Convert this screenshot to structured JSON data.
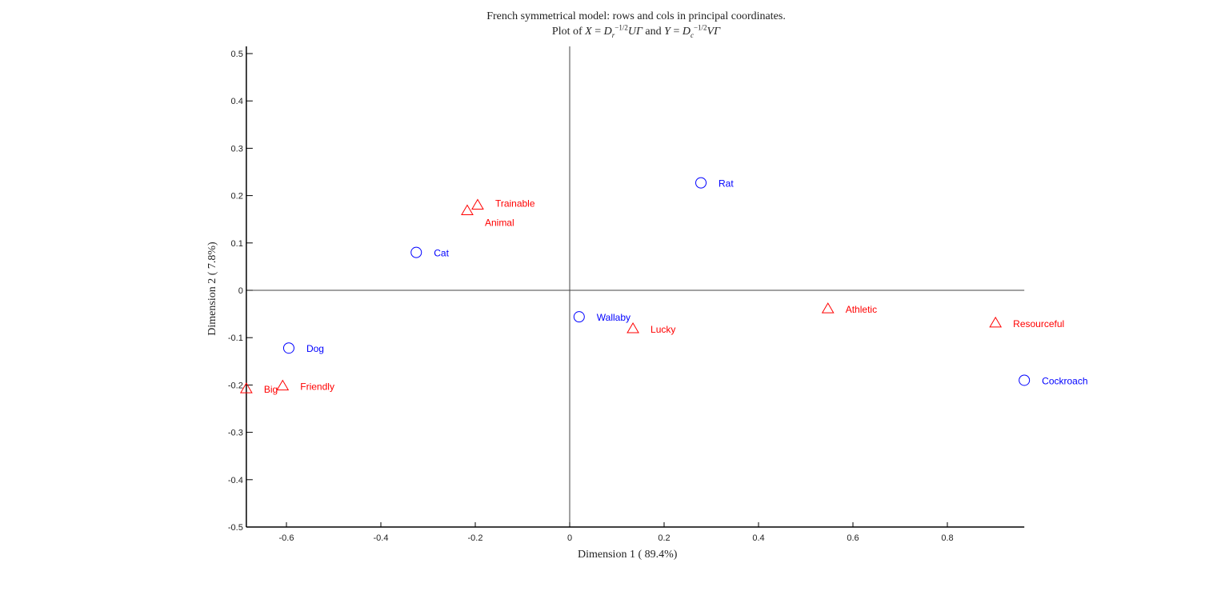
{
  "chart_data": {
    "type": "scatter",
    "title": {
      "line1": "French symmetrical model: rows and cols in principal coordinates.",
      "line2": {
        "prefix": "Plot of ",
        "x": "X",
        "eq": " = ",
        "d": "D",
        "sub_r": "r",
        "sup": "−1/2",
        "ug": "UΓ",
        "and": " and ",
        "y": "Y",
        "sub_c": "c",
        "vg": "VΓ"
      }
    },
    "xlabel": "Dimension  1 ( 89.4%)",
    "ylabel": "Dimension  2 ( 7.8%)",
    "xlim": [
      -0.685,
      0.963
    ],
    "ylim": [
      -0.5,
      0.5
    ],
    "xticks": [
      "-0.6",
      "-0.4",
      "-0.2",
      "0",
      "0.2",
      "0.4",
      "0.6",
      "0.8"
    ],
    "yticks": [
      "0.5",
      "0.4",
      "0.3",
      "0.2",
      "0.1",
      "0",
      "-0.1",
      "-0.2",
      "-0.3",
      "-0.4",
      "-0.5"
    ],
    "grid": false,
    "series": [
      {
        "marker": "circle",
        "color": "#0000ff",
        "points": [
          {
            "label": "Rat",
            "x": 0.278,
            "y": 0.227
          },
          {
            "label": "Cat",
            "x": -0.325,
            "y": 0.08
          },
          {
            "label": "Dog",
            "x": -0.595,
            "y": -0.122
          },
          {
            "label": "Wallaby",
            "x": 0.02,
            "y": -0.056
          },
          {
            "label": "Cockroach",
            "x": 0.963,
            "y": -0.19
          }
        ]
      },
      {
        "marker": "triangle",
        "color": "#ff0000",
        "points": [
          {
            "label": "Trainable",
            "x": -0.195,
            "y": 0.18
          },
          {
            "label": "Animal",
            "x": -0.217,
            "y": 0.168
          },
          {
            "label": "Big",
            "x": -0.685,
            "y": -0.208
          },
          {
            "label": "Friendly",
            "x": -0.608,
            "y": -0.202
          },
          {
            "label": "Athletic",
            "x": 0.547,
            "y": -0.039
          },
          {
            "label": "Lucky",
            "x": 0.134,
            "y": -0.081
          },
          {
            "label": "Resourceful",
            "x": 0.902,
            "y": -0.069
          }
        ]
      }
    ]
  }
}
